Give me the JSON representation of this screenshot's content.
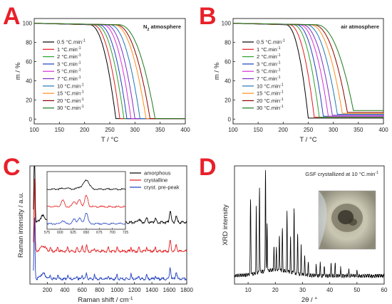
{
  "chart_data": [
    {
      "panel": "A",
      "type": "line",
      "annotation": "N2 atmosphere",
      "xlabel": "T / °C",
      "ylabel": "m / %",
      "xlim": [
        100,
        400
      ],
      "ylim": [
        -5,
        105
      ],
      "xticks": [
        100,
        150,
        200,
        250,
        300,
        350,
        400
      ],
      "yticks": [
        0,
        20,
        40,
        60,
        80,
        100
      ],
      "legend_position": "left",
      "series": [
        {
          "name": "0.5 °C.min-1",
          "name_main": "0.5 °C.min",
          "name_sup": "-1",
          "color": "#000000",
          "onset": 210,
          "end": 262
        },
        {
          "name": "1 °C.min-1",
          "name_main": "1 °C.min",
          "name_sup": "-1",
          "color": "#e41a1c",
          "onset": 216,
          "end": 270
        },
        {
          "name": "2 °C.min-1",
          "name_main": "2 °C.min",
          "name_sup": "-1",
          "color": "#2ca02c",
          "onset": 222,
          "end": 278
        },
        {
          "name": "3 °C.min-1",
          "name_main": "3 °C.min",
          "name_sup": "-1",
          "color": "#1f3fbf",
          "onset": 228,
          "end": 284
        },
        {
          "name": "5 °C.min-1",
          "name_main": "5 °C.min",
          "name_sup": "-1",
          "color": "#d62fd6",
          "onset": 236,
          "end": 292
        },
        {
          "name": "7 °C.min-1",
          "name_main": "7 °C.min",
          "name_sup": "-1",
          "color": "#7b2fbf",
          "onset": 242,
          "end": 300
        },
        {
          "name": "10 °C.min-1",
          "name_main": "10 °C.min",
          "name_sup": "-1",
          "color": "#1f77b4",
          "onset": 250,
          "end": 310
        },
        {
          "name": "15 °C.min-1",
          "name_main": "15 °C.min",
          "name_sup": "-1",
          "color": "#ff8c1a",
          "onset": 258,
          "end": 322
        },
        {
          "name": "20 °C.min-1",
          "name_main": "20 °C.min",
          "name_sup": "-1",
          "color": "#8b0000",
          "onset": 262,
          "end": 330
        },
        {
          "name": "30 °C.min-1",
          "name_main": "30 °C.min",
          "name_sup": "-1",
          "color": "#1a7a1a",
          "onset": 268,
          "end": 340
        }
      ]
    },
    {
      "panel": "B",
      "type": "line",
      "annotation": "air atmosphere",
      "xlabel": "T / °C",
      "ylabel": "m / %",
      "xlim": [
        100,
        400
      ],
      "ylim": [
        -5,
        105
      ],
      "xticks": [
        100,
        150,
        200,
        250,
        300,
        350,
        400
      ],
      "yticks": [
        0,
        20,
        40,
        60,
        80,
        100
      ],
      "legend_position": "right",
      "series": [
        {
          "name": "0.5 °C.min-1",
          "name_main": "0.5 °C.min",
          "name_sup": "-1",
          "color": "#000000",
          "onset": 205,
          "end": 250,
          "residue": 1
        },
        {
          "name": "1 °C.min-1",
          "name_main": "1 °C.min",
          "name_sup": "-1",
          "color": "#e41a1c",
          "onset": 212,
          "end": 262,
          "residue": 2
        },
        {
          "name": "2 °C.min-1",
          "name_main": "2 °C.min",
          "name_sup": "-1",
          "color": "#2ca02c",
          "onset": 220,
          "end": 272,
          "residue": 2
        },
        {
          "name": "3 °C.min-1",
          "name_main": "3 °C.min",
          "name_sup": "-1",
          "color": "#1f3fbf",
          "onset": 226,
          "end": 280,
          "residue": 3
        },
        {
          "name": "5 °C.min-1",
          "name_main": "5 °C.min",
          "name_sup": "-1",
          "color": "#d62fd6",
          "onset": 232,
          "end": 290,
          "residue": 3
        },
        {
          "name": "7 °C.min-1",
          "name_main": "7 °C.min",
          "name_sup": "-1",
          "color": "#7b2fbf",
          "onset": 238,
          "end": 298,
          "residue": 4
        },
        {
          "name": "10 °C.min-1",
          "name_main": "10 °C.min",
          "name_sup": "-1",
          "color": "#1f77b4",
          "onset": 246,
          "end": 308,
          "residue": 5
        },
        {
          "name": "15 °C.min-1",
          "name_main": "15 °C.min",
          "name_sup": "-1",
          "color": "#ff8c1a",
          "onset": 254,
          "end": 318,
          "residue": 6
        },
        {
          "name": "20 °C.min-1",
          "name_main": "20 °C.min",
          "name_sup": "-1",
          "color": "#8b0000",
          "onset": 260,
          "end": 328,
          "residue": 7
        },
        {
          "name": "30 °C.min-1",
          "name_main": "30 °C.min",
          "name_sup": "-1",
          "color": "#1a7a1a",
          "onset": 266,
          "end": 340,
          "residue": 9
        }
      ]
    },
    {
      "panel": "C",
      "type": "line",
      "xlabel": "Raman shift / cm-1",
      "xlabel_main": "Raman shift  /  cm",
      "xlabel_sup": "-1",
      "ylabel": "Raman intensity / a.u.",
      "xlim": [
        0,
        1800
      ],
      "xticks": [
        200,
        400,
        600,
        800,
        1000,
        1200,
        1400,
        1600,
        1800
      ],
      "legend_position": "top-right",
      "series": [
        {
          "name": "amorphous",
          "color": "#000000",
          "offset": 0.6,
          "peaks": [
            [
              52,
              2.6,
              6
            ],
            [
              150,
              0.18,
              30
            ],
            [
              650,
              0.14,
              8
            ],
            [
              720,
              0.06,
              10
            ],
            [
              880,
              0.05,
              10
            ],
            [
              1060,
              0.06,
              10
            ],
            [
              1250,
              0.08,
              15
            ],
            [
              1340,
              0.12,
              10
            ],
            [
              1440,
              0.1,
              10
            ],
            [
              1610,
              0.32,
              10
            ],
            [
              1680,
              0.16,
              10
            ]
          ]
        },
        {
          "name": "crystalline",
          "color": "#e41a1c",
          "offset": 0.32,
          "peaks": [
            [
              52,
              2.0,
              6
            ],
            [
              150,
              0.15,
              30
            ],
            [
              235,
              0.1,
              6
            ],
            [
              320,
              0.12,
              6
            ],
            [
              435,
              0.11,
              6
            ],
            [
              540,
              0.1,
              6
            ],
            [
              600,
              0.12,
              6
            ],
            [
              650,
              0.16,
              6
            ],
            [
              740,
              0.1,
              6
            ],
            [
              900,
              0.09,
              6
            ],
            [
              1000,
              0.11,
              6
            ],
            [
              1160,
              0.12,
              6
            ],
            [
              1250,
              0.1,
              6
            ],
            [
              1340,
              0.12,
              6
            ],
            [
              1440,
              0.1,
              6
            ],
            [
              1610,
              0.3,
              8
            ],
            [
              1680,
              0.18,
              8
            ]
          ]
        },
        {
          "name": "cryst. pre-peak",
          "color": "#1f3fbf",
          "offset": 0.05,
          "peaks": [
            [
              52,
              1.7,
              6
            ],
            [
              150,
              0.15,
              30
            ],
            [
              235,
              0.1,
              6
            ],
            [
              320,
              0.12,
              6
            ],
            [
              435,
              0.11,
              6
            ],
            [
              540,
              0.1,
              6
            ],
            [
              600,
              0.12,
              6
            ],
            [
              650,
              0.15,
              6
            ],
            [
              740,
              0.1,
              6
            ],
            [
              900,
              0.09,
              6
            ],
            [
              1000,
              0.11,
              6
            ],
            [
              1160,
              0.12,
              6
            ],
            [
              1250,
              0.1,
              6
            ],
            [
              1340,
              0.12,
              6
            ],
            [
              1440,
              0.1,
              6
            ],
            [
              1610,
              0.32,
              8
            ],
            [
              1680,
              0.2,
              8
            ]
          ]
        }
      ],
      "inset": {
        "xlim": [
          575,
          725
        ],
        "xticks": [
          575,
          600,
          625,
          650,
          675,
          700,
          725
        ],
        "series": [
          {
            "name": "amorphous",
            "color": "#000000",
            "offset": 0.68,
            "peaks": [
              [
                651,
                0.16,
                5
              ],
              [
                640,
                0.04,
                6
              ],
              [
                610,
                0.02,
                6
              ]
            ]
          },
          {
            "name": "crystalline",
            "color": "#e41a1c",
            "offset": 0.36,
            "peaks": [
              [
                605,
                0.12,
                3
              ],
              [
                627,
                0.1,
                3
              ],
              [
                637,
                0.12,
                3
              ],
              [
                650,
                0.2,
                3
              ]
            ]
          },
          {
            "name": "cryst. pre-peak",
            "color": "#1f3fbf",
            "offset": 0.05,
            "peaks": [
              [
                605,
                0.06,
                3
              ],
              [
                627,
                0.08,
                3
              ],
              [
                637,
                0.1,
                3
              ],
              [
                650,
                0.2,
                3
              ]
            ]
          }
        ]
      }
    },
    {
      "panel": "D",
      "type": "line",
      "annotation": "GSF crystallized at 10 °C.min-1",
      "annotation_main": "GSF crystallized at 10 °C.min",
      "annotation_sup": "-1",
      "xlabel": "2θ / °",
      "ylabel": "XRD intensity",
      "xlim": [
        5,
        60
      ],
      "xticks": [
        10,
        20,
        30,
        40,
        50,
        60
      ],
      "series": [
        {
          "name": "",
          "color": "#000000",
          "peaks": [
            [
              10.9,
              0.62,
              0.12
            ],
            [
              13.0,
              0.56,
              0.1
            ],
            [
              14.2,
              0.72,
              0.1
            ],
            [
              16.4,
              0.86,
              0.1
            ],
            [
              17.0,
              0.4,
              0.1
            ],
            [
              19.5,
              0.2,
              0.1
            ],
            [
              20.4,
              0.18,
              0.1
            ],
            [
              21.5,
              0.3,
              0.1
            ],
            [
              22.6,
              0.35,
              0.1
            ],
            [
              24.3,
              0.5,
              0.1
            ],
            [
              25.6,
              0.3,
              0.1
            ],
            [
              26.9,
              0.55,
              0.1
            ],
            [
              28.2,
              0.35,
              0.1
            ],
            [
              29.5,
              0.25,
              0.1
            ],
            [
              30.8,
              0.15,
              0.1
            ],
            [
              32.1,
              0.12,
              0.1
            ],
            [
              35.0,
              0.1,
              0.1
            ],
            [
              36.5,
              0.12,
              0.1
            ],
            [
              38.0,
              0.09,
              0.1
            ],
            [
              40.5,
              0.1,
              0.1
            ],
            [
              42.0,
              0.1,
              0.1
            ],
            [
              44.0,
              0.07,
              0.1
            ],
            [
              47.0,
              0.05,
              0.1
            ],
            [
              50.0,
              0.04,
              0.1
            ]
          ]
        }
      ]
    }
  ]
}
